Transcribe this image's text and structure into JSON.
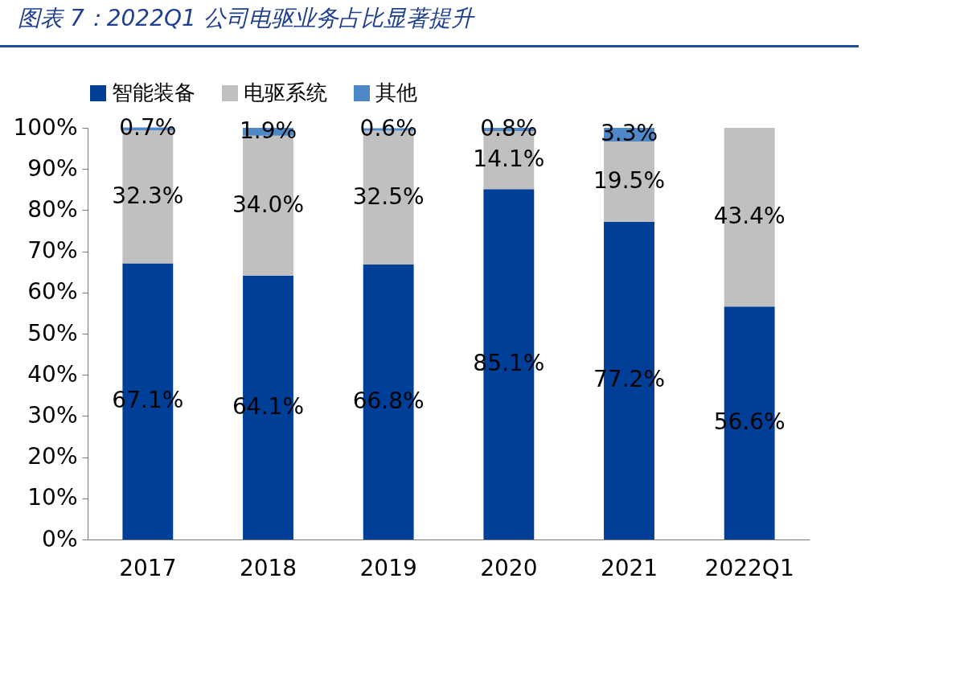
{
  "chart_data": {
    "type": "bar",
    "title": "图表 7：2022Q1 公司电驱业务占比显著提升",
    "stacked": true,
    "legend": "top",
    "grid": false,
    "categories": [
      "2017",
      "2018",
      "2019",
      "2020",
      "2021",
      "2022Q1"
    ],
    "series": [
      {
        "name": "智能装备",
        "color": "#003f98",
        "values": [
          67.1,
          64.1,
          66.8,
          85.1,
          77.2,
          56.6
        ],
        "value_labels": [
          "67.1%",
          "64.1%",
          "66.8%",
          "85.1%",
          "77.2%",
          "56.6%"
        ]
      },
      {
        "name": "电驱系统",
        "color": "#c0c0c0",
        "values": [
          32.3,
          34.0,
          32.5,
          14.1,
          19.5,
          43.4
        ],
        "value_labels": [
          "32.3%",
          "34.0%",
          "32.5%",
          "14.1%",
          "19.5%",
          "43.4%"
        ]
      },
      {
        "name": "其他",
        "color": "#4f88c6",
        "values": [
          0.7,
          1.9,
          0.6,
          0.8,
          3.3,
          null
        ],
        "value_labels": [
          "0.7%",
          "1.9%",
          "0.6%",
          "0.8%",
          "3.3%",
          null
        ]
      }
    ],
    "ylim": [
      0,
      100
    ],
    "yticks": [
      {
        "value": 0,
        "label": "0%"
      },
      {
        "value": 10,
        "label": "10%"
      },
      {
        "value": 20,
        "label": "20%"
      },
      {
        "value": 30,
        "label": "30%"
      },
      {
        "value": 40,
        "label": "40%"
      },
      {
        "value": 50,
        "label": "50%"
      },
      {
        "value": 60,
        "label": "60%"
      },
      {
        "value": 70,
        "label": "70%"
      },
      {
        "value": 80,
        "label": "80%"
      },
      {
        "value": 90,
        "label": "90%"
      },
      {
        "value": 100,
        "label": "100%"
      }
    ]
  }
}
